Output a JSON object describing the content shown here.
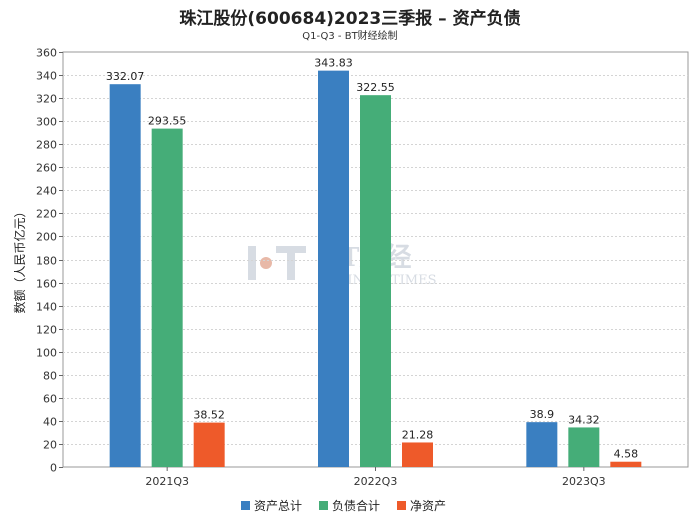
{
  "chart_data": {
    "type": "bar",
    "title": "珠江股份(600684)2023三季报 – 资产负债",
    "subtitle": "Q1-Q3 - BT财经绘制",
    "ylabel": "数额（人民币亿元）",
    "xlabel": "",
    "ylim": [
      0,
      360
    ],
    "ytick_step": 20,
    "grid": true,
    "legend_position": "bottom",
    "categories": [
      "2021Q3",
      "2022Q3",
      "2023Q3"
    ],
    "series": [
      {
        "name": "资产总计",
        "color": "#3a7fc1",
        "values": [
          332.07,
          343.83,
          38.9
        ]
      },
      {
        "name": "负债合计",
        "color": "#45ad78",
        "values": [
          293.55,
          322.55,
          34.32
        ]
      },
      {
        "name": "净资产",
        "color": "#ee5a2a",
        "values": [
          38.52,
          21.28,
          4.58
        ]
      }
    ],
    "watermark": {
      "cn": "BT财经",
      "en": "BUSINESSTIMES"
    }
  }
}
